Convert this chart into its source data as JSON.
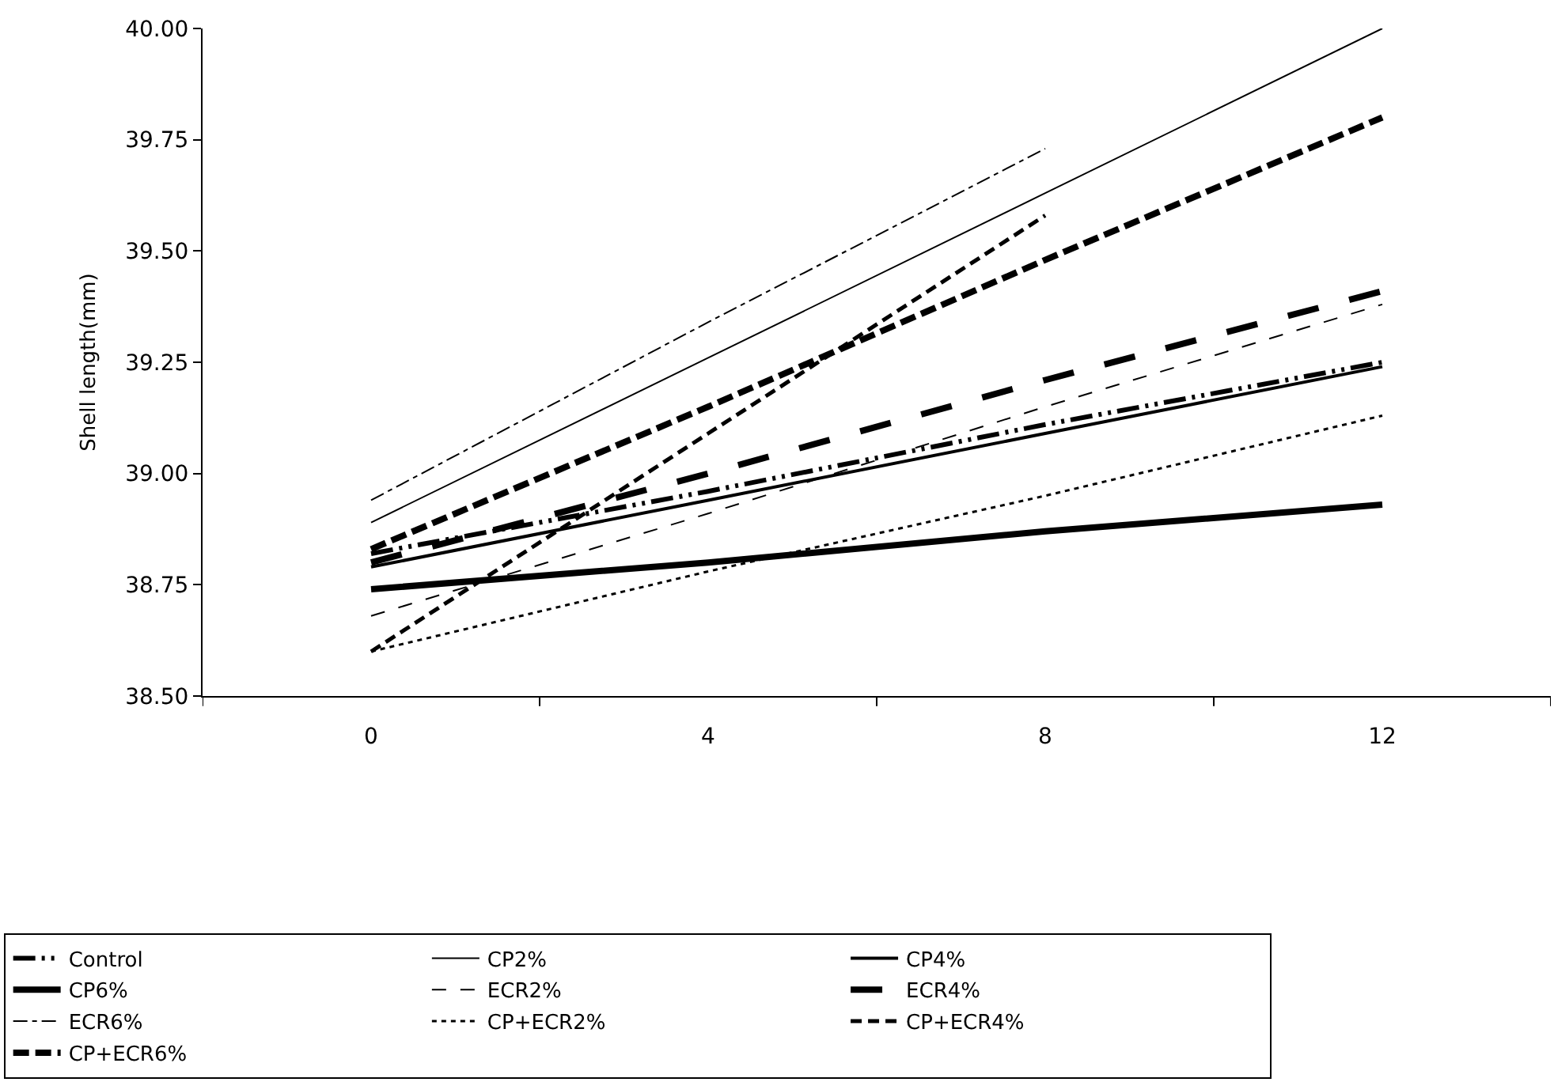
{
  "chart_data": {
    "type": "line",
    "ylabel": "Shell length(mm)",
    "categories": [
      "0",
      "4",
      "8",
      "12"
    ],
    "ylim": [
      38.5,
      40.0
    ],
    "yticks": [
      {
        "value": 38.5,
        "label": "38.50"
      },
      {
        "value": 38.75,
        "label": "38.75"
      },
      {
        "value": 39.0,
        "label": "39.00"
      },
      {
        "value": 39.25,
        "label": "39.25"
      },
      {
        "value": 39.5,
        "label": "39.50"
      },
      {
        "value": 39.75,
        "label": "39.75"
      },
      {
        "value": 40.0,
        "label": "40.00"
      }
    ],
    "legend": "bottom left",
    "marker": "none",
    "series": [
      {
        "name": "Control",
        "color": "#000000",
        "line_style": "longdashdotdot",
        "values": [
          38.82,
          38.96,
          39.11,
          39.25
        ]
      },
      {
        "name": "CP2%",
        "color": "#000000",
        "line_style": "solid",
        "values": [
          38.89,
          39.26,
          39.63,
          40.0
        ]
      },
      {
        "name": "CP4%",
        "color": "#000000",
        "line_style": "solid",
        "values": [
          38.79,
          38.94,
          39.09,
          39.24
        ]
      },
      {
        "name": "CP6%",
        "color": "#000000",
        "line_style": "solid",
        "values": [
          38.74,
          38.8,
          38.87,
          38.93
        ]
      },
      {
        "name": "ECR2%",
        "color": "#000000",
        "line_style": "dashed",
        "values": [
          38.68,
          38.91,
          39.15,
          39.38
        ]
      },
      {
        "name": "ECR4%",
        "color": "#000000",
        "line_style": "longdash",
        "values": [
          38.8,
          39.0,
          39.21,
          39.41
        ]
      },
      {
        "name": "ECR6%",
        "color": "#000000",
        "line_style": "dashdot",
        "values": [
          38.94,
          39.34,
          39.73,
          null
        ]
      },
      {
        "name": "CP+ECR2%",
        "color": "#000000",
        "line_style": "dotted",
        "values": [
          38.6,
          38.78,
          38.95,
          39.13
        ]
      },
      {
        "name": "CP+ECR4%",
        "color": "#000000",
        "line_style": "dashed",
        "values": [
          38.6,
          39.09,
          39.58,
          null
        ]
      },
      {
        "name": "CP+ECR6%",
        "color": "#000000",
        "line_style": "dashed",
        "values": [
          38.83,
          39.15,
          39.48,
          39.8
        ]
      }
    ]
  }
}
